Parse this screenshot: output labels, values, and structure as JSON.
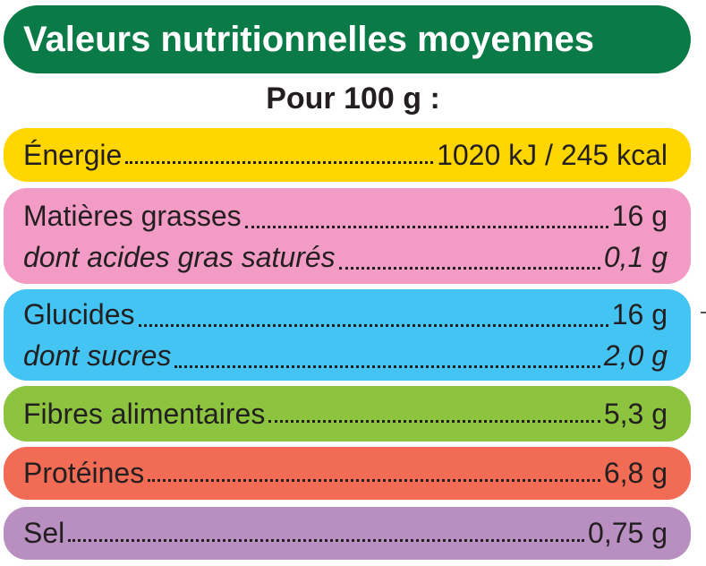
{
  "title": "Valeurs nutritionnelles moyennes",
  "subtitle": "Pour 100 g :",
  "rows": [
    {
      "color": "#ffd600",
      "lines": [
        {
          "label": "Énergie",
          "value": "1020 kJ / 245 kcal",
          "italic": false
        }
      ]
    },
    {
      "color": "#f29bc5",
      "lines": [
        {
          "label": "Matières grasses",
          "value": "16 g",
          "italic": false
        },
        {
          "label": "dont acides gras saturés",
          "value": "0,1 g",
          "italic": true
        }
      ]
    },
    {
      "color": "#43c4f3",
      "lines": [
        {
          "label": "Glucides",
          "value": "16 g",
          "italic": false
        },
        {
          "label": "dont sucres",
          "value": "2,0 g",
          "italic": true
        }
      ]
    },
    {
      "color": "#8cc43f",
      "lines": [
        {
          "label": "Fibres alimentaires",
          "value": "5,3 g",
          "italic": false
        }
      ]
    },
    {
      "color": "#f26b54",
      "lines": [
        {
          "label": "Protéines",
          "value": "6,8 g",
          "italic": false
        }
      ]
    },
    {
      "color": "#b98ec1",
      "lines": [
        {
          "label": "Sel",
          "value": "0,75 g",
          "italic": false
        }
      ]
    }
  ],
  "colors": {
    "title_background": "#0a7a46",
    "title_text": "#ffffff",
    "text": "#231f20"
  }
}
